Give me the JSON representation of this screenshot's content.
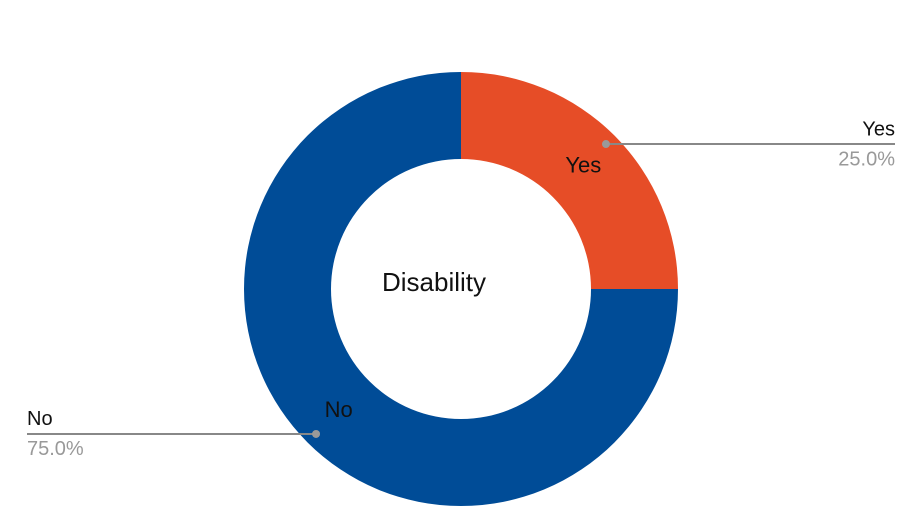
{
  "chart_data": {
    "type": "donut",
    "center_label": "Disability",
    "categories": [
      "Yes",
      "No"
    ],
    "values": [
      25,
      75
    ],
    "value_labels": [
      "25.0%",
      "75.0%"
    ],
    "colors": [
      "#e64d27",
      "#004c97"
    ]
  }
}
